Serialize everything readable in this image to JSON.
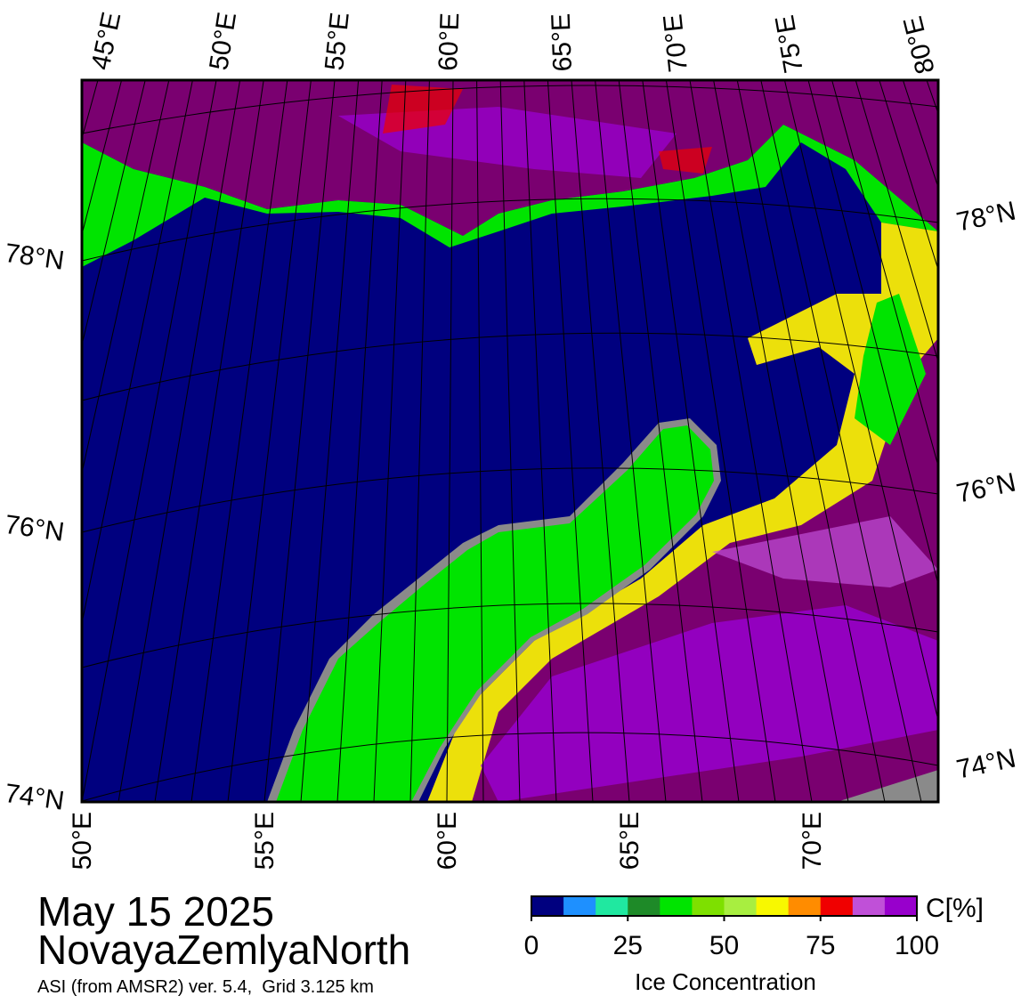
{
  "map": {
    "top_lon_labels": [
      "45°E",
      "50°E",
      "55°E",
      "60°E",
      "65°E",
      "70°E",
      "75°E",
      "80°E"
    ],
    "bottom_lon_labels": [
      "50°E",
      "55°E",
      "60°E",
      "65°E",
      "70°E"
    ],
    "left_lat_labels": [
      "78°N",
      "76°N",
      "74°N"
    ],
    "right_lat_labels": [
      "78°N",
      "76°N",
      "74°N"
    ]
  },
  "caption": {
    "date": "May 15 2025",
    "region": "NovayaZemlyaNorth",
    "source": "ASI (from AMSR2) ver. 5.4,  Grid 3.125 km"
  },
  "colorbar": {
    "lim": [
      0,
      100
    ],
    "ticks": [
      0,
      25,
      50,
      75,
      100
    ],
    "unit_label": "C[%]",
    "label": "Ice Concentration",
    "colors": [
      "#00007f",
      "#1e90ff",
      "#20e8a0",
      "#1e8a28",
      "#00e400",
      "#7ee000",
      "#a8ee40",
      "#f8f800",
      "#ff8c00",
      "#f00000",
      "#c050d8",
      "#9800cc"
    ]
  }
}
